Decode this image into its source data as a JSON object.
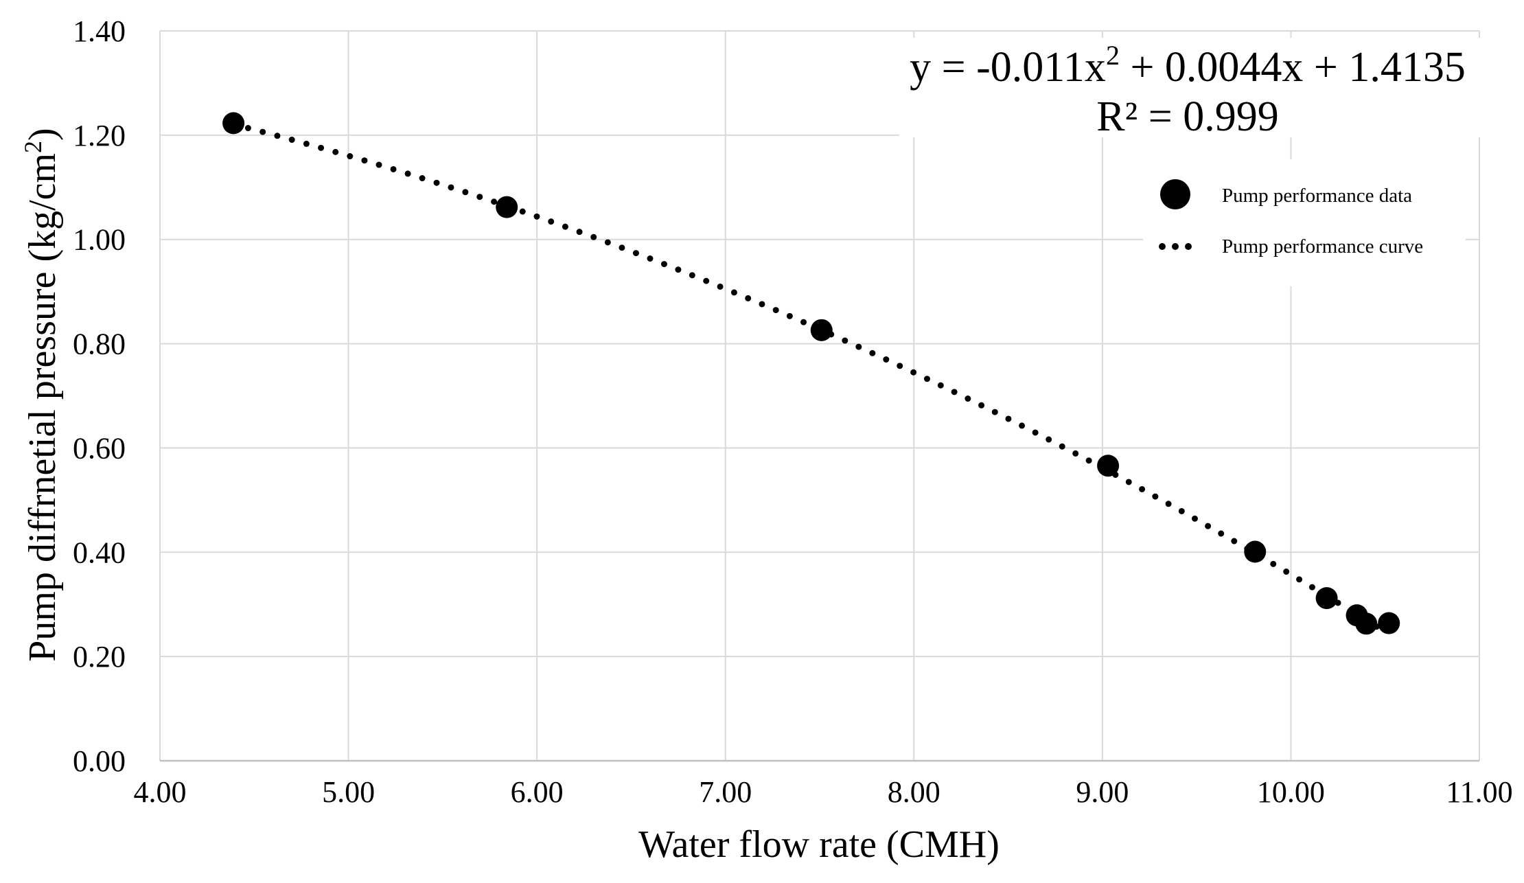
{
  "chart_data": {
    "type": "scatter",
    "title": "",
    "xlabel": "Water flow rate (CMH)",
    "ylabel_main": "Pump  diffrnetial pressure (kg/cm",
    "ylabel_sup": "2",
    "ylabel_end": ")",
    "xlim": [
      4.0,
      11.0
    ],
    "ylim": [
      0.0,
      1.4
    ],
    "x_ticks": [
      4.0,
      5.0,
      6.0,
      7.0,
      8.0,
      9.0,
      10.0,
      11.0
    ],
    "x_tick_labels": [
      "4.00",
      "5.00",
      "6.00",
      "7.00",
      "8.00",
      "9.00",
      "10.00",
      "11.00"
    ],
    "y_ticks": [
      0.0,
      0.2,
      0.4,
      0.6,
      0.8,
      1.0,
      1.2,
      1.4
    ],
    "y_tick_labels": [
      "0.00",
      "0.20",
      "0.40",
      "0.60",
      "0.80",
      "1.00",
      "1.20",
      "1.40"
    ],
    "grid": true,
    "series": [
      {
        "name": "Pump performance data",
        "kind": "points",
        "x": [
          4.39,
          5.84,
          7.51,
          9.03,
          9.81,
          10.19,
          10.35,
          10.4,
          10.52
        ],
        "y": [
          1.223,
          1.062,
          0.826,
          0.566,
          0.401,
          0.312,
          0.279,
          0.263,
          0.264
        ]
      },
      {
        "name": "Pump performance curve",
        "kind": "trendline",
        "coefficients": {
          "a": -0.011,
          "b": 0.0044,
          "c": 1.4135
        },
        "x_range": [
          4.39,
          10.52
        ]
      }
    ],
    "equation": {
      "line1_prefix": "y = -0.011x",
      "line1_sup": "2",
      "line1_suffix": " + 0.0044x + 1.4135",
      "line2": "R² = 0.999"
    },
    "legend": {
      "placement": "top-right",
      "items": [
        "Pump performance data",
        "Pump performance curve"
      ]
    },
    "colors": {
      "marker": "#000000",
      "curve": "#000000",
      "grid": "#d9d9d9",
      "axis": "#bfbfbf"
    }
  }
}
